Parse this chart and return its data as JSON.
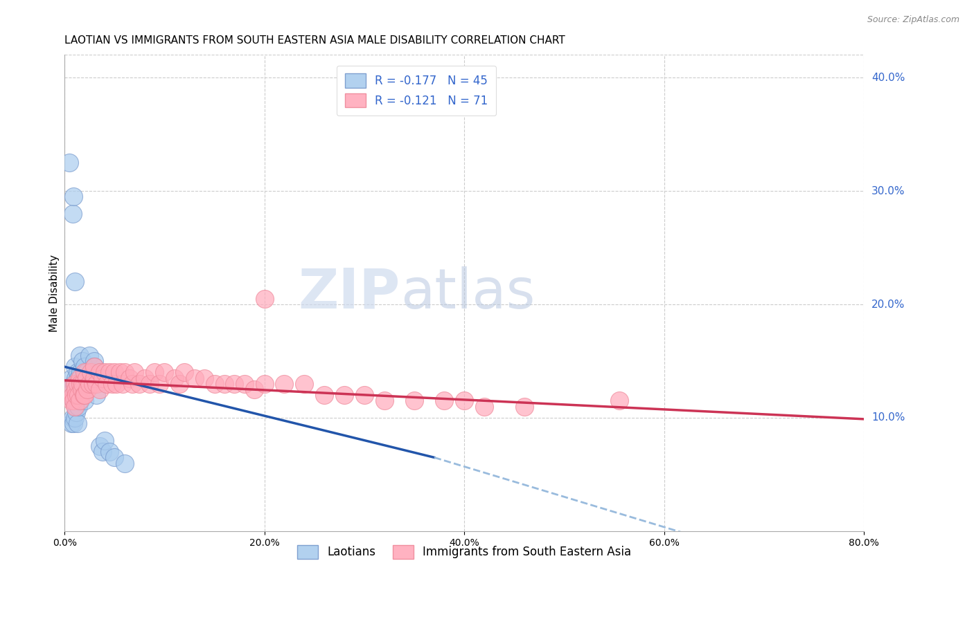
{
  "title": "LAOTIAN VS IMMIGRANTS FROM SOUTH EASTERN ASIA MALE DISABILITY CORRELATION CHART",
  "source": "Source: ZipAtlas.com",
  "ylabel": "Male Disability",
  "xlabel": "",
  "x_min": 0.0,
  "x_max": 0.8,
  "y_min": 0.0,
  "y_max": 0.42,
  "grid_color": "#cccccc",
  "background_color": "#ffffff",
  "blue_color": "#aaccee",
  "pink_color": "#ffaabb",
  "blue_edge_color": "#7799cc",
  "pink_edge_color": "#ee8899",
  "blue_line_color": "#2255aa",
  "blue_dash_color": "#99bbdd",
  "pink_line_color": "#cc3355",
  "blue_line": [
    0.0,
    0.145,
    0.37,
    0.065
  ],
  "blue_dashed": [
    0.37,
    0.065,
    0.82,
    -0.055
  ],
  "pink_line": [
    0.0,
    0.133,
    0.82,
    0.098
  ],
  "legend_blue_label": "R = -0.177   N = 45",
  "legend_pink_label": "R = -0.121   N = 71",
  "bottom_blue_label": "Laotians",
  "bottom_pink_label": "Immigrants from South Eastern Asia",
  "title_fontsize": 11,
  "axis_label_color": "#3366cc",
  "right_ytick_labels": [
    "10.0%",
    "20.0%",
    "30.0%",
    "40.0%"
  ],
  "right_ytick_values": [
    0.1,
    0.2,
    0.3,
    0.4
  ],
  "blue_scatter_x": [
    0.005,
    0.007,
    0.007,
    0.008,
    0.008,
    0.009,
    0.009,
    0.009,
    0.01,
    0.01,
    0.01,
    0.01,
    0.011,
    0.011,
    0.012,
    0.012,
    0.013,
    0.013,
    0.013,
    0.014,
    0.014,
    0.015,
    0.015,
    0.016,
    0.016,
    0.017,
    0.018,
    0.019,
    0.02,
    0.02,
    0.022,
    0.025,
    0.028,
    0.03,
    0.03,
    0.032,
    0.035,
    0.038,
    0.04,
    0.045,
    0.05,
    0.06,
    0.008,
    0.009,
    0.01
  ],
  "blue_scatter_y": [
    0.325,
    0.135,
    0.095,
    0.12,
    0.1,
    0.13,
    0.115,
    0.095,
    0.145,
    0.13,
    0.115,
    0.1,
    0.135,
    0.11,
    0.125,
    0.105,
    0.14,
    0.125,
    0.095,
    0.135,
    0.11,
    0.155,
    0.13,
    0.14,
    0.115,
    0.125,
    0.15,
    0.13,
    0.145,
    0.115,
    0.14,
    0.155,
    0.14,
    0.15,
    0.145,
    0.12,
    0.075,
    0.07,
    0.08,
    0.07,
    0.065,
    0.06,
    0.28,
    0.295,
    0.22
  ],
  "pink_scatter_x": [
    0.005,
    0.007,
    0.008,
    0.009,
    0.01,
    0.01,
    0.011,
    0.012,
    0.013,
    0.014,
    0.015,
    0.015,
    0.016,
    0.017,
    0.018,
    0.019,
    0.02,
    0.02,
    0.022,
    0.023,
    0.025,
    0.026,
    0.028,
    0.03,
    0.03,
    0.032,
    0.035,
    0.035,
    0.038,
    0.04,
    0.042,
    0.045,
    0.048,
    0.05,
    0.052,
    0.055,
    0.058,
    0.06,
    0.065,
    0.068,
    0.07,
    0.075,
    0.08,
    0.085,
    0.09,
    0.095,
    0.1,
    0.11,
    0.115,
    0.12,
    0.13,
    0.14,
    0.15,
    0.16,
    0.17,
    0.18,
    0.19,
    0.2,
    0.22,
    0.24,
    0.26,
    0.28,
    0.3,
    0.32,
    0.35,
    0.38,
    0.42,
    0.46,
    0.555,
    0.2,
    0.4
  ],
  "pink_scatter_y": [
    0.125,
    0.115,
    0.12,
    0.115,
    0.13,
    0.11,
    0.125,
    0.12,
    0.13,
    0.12,
    0.135,
    0.115,
    0.13,
    0.125,
    0.13,
    0.12,
    0.14,
    0.12,
    0.135,
    0.125,
    0.13,
    0.14,
    0.13,
    0.135,
    0.145,
    0.13,
    0.14,
    0.125,
    0.135,
    0.14,
    0.13,
    0.14,
    0.13,
    0.14,
    0.13,
    0.14,
    0.13,
    0.14,
    0.135,
    0.13,
    0.14,
    0.13,
    0.135,
    0.13,
    0.14,
    0.13,
    0.14,
    0.135,
    0.13,
    0.14,
    0.135,
    0.135,
    0.13,
    0.13,
    0.13,
    0.13,
    0.125,
    0.13,
    0.13,
    0.13,
    0.12,
    0.12,
    0.12,
    0.115,
    0.115,
    0.115,
    0.11,
    0.11,
    0.115,
    0.205,
    0.115
  ]
}
